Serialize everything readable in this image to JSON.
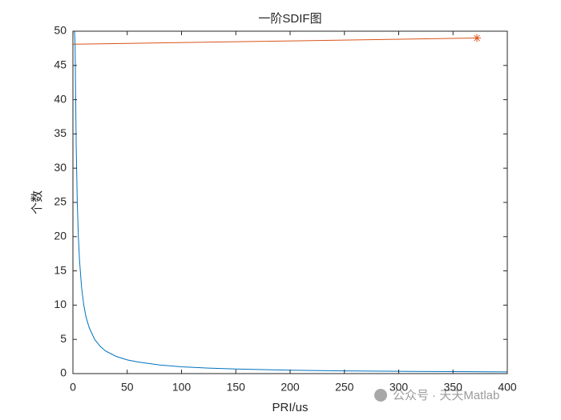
{
  "chart_data": {
    "type": "line",
    "title": "一阶SDIF图",
    "xlabel": "PRI/us",
    "ylabel": "个数",
    "watermark": "公众号 · 天天Matlab",
    "xlim": [
      0,
      400
    ],
    "xticks": [
      0,
      50,
      100,
      150,
      200,
      250,
      300,
      350,
      400
    ],
    "ylim": [
      0,
      50
    ],
    "yticks": [
      0,
      5,
      10,
      15,
      20,
      25,
      30,
      35,
      40,
      45,
      50
    ],
    "box": true,
    "series": [
      {
        "color": "#0072bd",
        "marker": "none",
        "x": [
          1.5,
          2,
          3,
          4,
          5,
          6,
          8,
          10,
          12,
          15,
          20,
          25,
          30,
          40,
          50,
          60,
          80,
          100,
          125,
          150,
          200,
          250,
          300,
          350,
          400
        ],
        "values": [
          50,
          48,
          33.3,
          25,
          20,
          16.7,
          12.5,
          10,
          8.3,
          6.7,
          5,
          4,
          3.3,
          2.5,
          2,
          1.7,
          1.25,
          1,
          0.8,
          0.67,
          0.5,
          0.4,
          0.33,
          0.29,
          0.25
        ]
      },
      {
        "color": "#d95319",
        "marker": "none",
        "x": [
          0,
          372
        ],
        "values": [
          48.1,
          49
        ]
      },
      {
        "color": "#d95319",
        "marker": "*",
        "x": [
          372
        ],
        "values": [
          49
        ]
      }
    ]
  }
}
